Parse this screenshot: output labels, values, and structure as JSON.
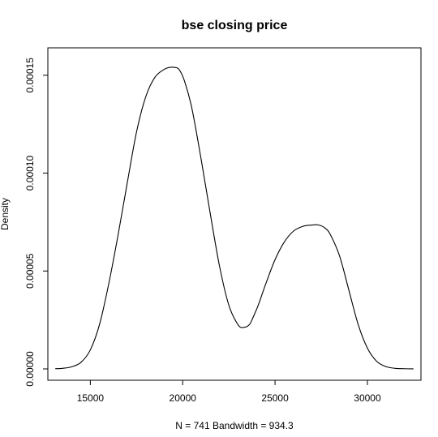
{
  "chart_data": {
    "type": "line",
    "title": "bse closing price",
    "xlabel": "N = 741   Bandwidth = 934.3",
    "ylabel": "Density",
    "xlim": [
      12700,
      32900
    ],
    "ylim": [
      -5.8e-06,
      0.000164
    ],
    "xticks": [
      15000,
      20000,
      25000,
      30000
    ],
    "xtick_labels": [
      "15000",
      "20000",
      "25000",
      "30000"
    ],
    "yticks": [
      0,
      5e-05,
      0.0001,
      0.00015
    ],
    "ytick_labels": [
      "0.00000",
      "0.00005",
      "0.00010",
      "0.00015"
    ],
    "grid": false,
    "legend": "none",
    "series": [
      {
        "x": [
          13100,
          13500,
          14000,
          14500,
          15000,
          15500,
          16000,
          16500,
          17000,
          17500,
          18000,
          18500,
          19000,
          19300,
          19560,
          19800,
          20100,
          20500,
          21000,
          21500,
          22000,
          22500,
          23000,
          23300,
          23600,
          23800,
          24100,
          24500,
          25000,
          25500,
          26000,
          26500,
          27000,
          27350,
          27700,
          28000,
          28500,
          29000,
          29500,
          30000,
          30500,
          31000,
          31500,
          32000,
          32500
        ],
        "y": [
          1e-07,
          3e-07,
          1.1e-06,
          3.4e-06,
          9.7e-06,
          2.28e-05,
          4.36e-05,
          6.83e-05,
          9.51e-05,
          0.000121,
          0.000139,
          0.000149,
          0.000153,
          0.000154,
          0.000154,
          0.000153,
          0.000147,
          0.000133,
          0.000107,
          7.89e-05,
          5.22e-05,
          3.25e-05,
          2.25e-05,
          2.12e-05,
          2.25e-05,
          2.61e-05,
          3.28e-05,
          4.35e-05,
          5.58e-05,
          6.48e-05,
          7.04e-05,
          7.28e-05,
          7.35e-05,
          7.35e-05,
          7.2e-05,
          6.85e-05,
          5.75e-05,
          4.01e-05,
          2.27e-05,
          1.06e-05,
          3.9e-06,
          1.2e-06,
          3e-07,
          1e-07,
          0.0
        ]
      }
    ]
  }
}
